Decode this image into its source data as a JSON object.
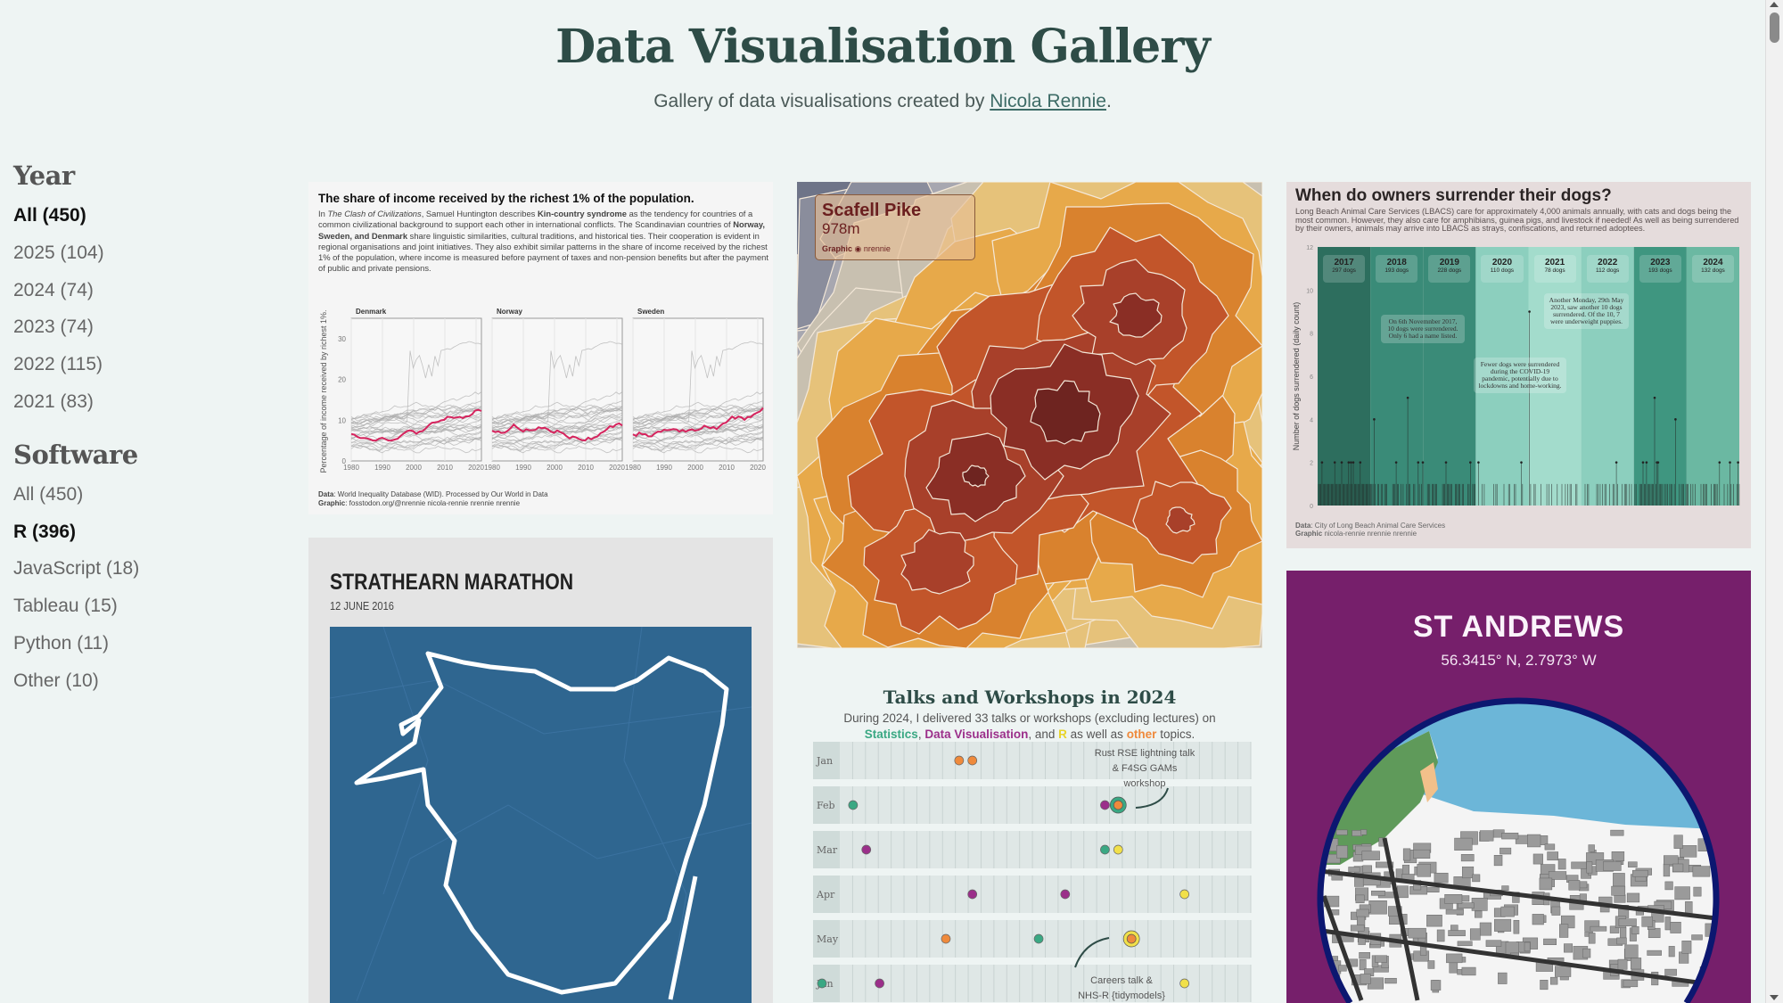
{
  "header": {
    "title": "Data Visualisation Gallery",
    "subtitle_prefix": "Gallery of data visualisations created by ",
    "author_link": "Nicola Rennie",
    "subtitle_suffix": "."
  },
  "sidebar": {
    "year_heading": "Year",
    "years": [
      {
        "label": "All (450)",
        "active": true
      },
      {
        "label": "2025 (104)"
      },
      {
        "label": "2024 (74)"
      },
      {
        "label": "2023 (74)"
      },
      {
        "label": "2022 (115)"
      },
      {
        "label": "2021 (83)"
      }
    ],
    "software_heading": "Software",
    "software": [
      {
        "label": "All (450)"
      },
      {
        "label": "R (396)",
        "active": true
      },
      {
        "label": "JavaScript (18)"
      },
      {
        "label": "Tableau (15)"
      },
      {
        "label": "Python (11)"
      },
      {
        "label": "Other (10)"
      }
    ]
  },
  "cards": {
    "income": {
      "title": "The share of income received by the richest 1% of the population.",
      "body_html_parts": {
        "p1": "In ",
        "italic": "The Clash of Civilizations",
        "p2": ", Samuel Huntington describes ",
        "bold1": "Kin-country syndrome",
        "p3": " as the tendency for countries of a common civilizational background to support each other in international conflicts. The Scandinavian countries of ",
        "bold2": "Norway, Sweden, and Denmark",
        "p4": " share linguistic similarities, cultural traditions, and historical ties. Their cooperation is evident in regional organisations and joint initiatives. They also exhibit similar patterns in the share of income received by the richest 1% of the population, where income is measured before payment of taxes and non-pension benefits but after the payment of public and private pensions."
      },
      "facets": [
        "Denmark",
        "Norway",
        "Sweden"
      ],
      "ylabel": "Percentage of income received by richest 1%.",
      "yticks": [
        "0",
        "10",
        "20",
        "30"
      ],
      "xticks": [
        "1980",
        "1990",
        "2000",
        "2010",
        "2020"
      ],
      "data_label": "Data",
      "data_text": ": World Inequality Database (WID). Processed by Our World in Data",
      "graphic_label": "Graphic",
      "graphic_text": ": fosstodon.org/@nrennie  nicola-rennie  nrennie  nrennie",
      "highlight_color": "#d6245e"
    },
    "scafell": {
      "title": "Scafell Pike",
      "height": "978m",
      "graphic": "Graphic",
      "handle": "nrennie"
    },
    "dogs": {
      "title": "When do owners surrender their dogs?",
      "body": "Long Beach Animal Care Services (LBACS) care for approximately 4,000 animals annually, with cats and dogs being the most common. However, they also care for amphibians, guinea pigs, and livestock if needed! As well as being surrendered by their owners, animals may arrive into LBACS as strays, confiscations, and returned adoptees.",
      "ylabel": "Number of dogs surrendered (daily count)",
      "yticks": [
        "0",
        "2",
        "4",
        "6",
        "8",
        "10",
        "12"
      ],
      "years": [
        {
          "year": "2017",
          "count": "297 dogs"
        },
        {
          "year": "2018",
          "count": "193 dogs"
        },
        {
          "year": "2019",
          "count": "228 dogs"
        },
        {
          "year": "2020",
          "count": "110 dogs"
        },
        {
          "year": "2021",
          "count": "78 dogs"
        },
        {
          "year": "2022",
          "count": "112 dogs"
        },
        {
          "year": "2023",
          "count": "193 dogs"
        },
        {
          "year": "2024",
          "count": "132 dogs"
        }
      ],
      "annotations": [
        "On 6th Novemnber 2017, 10 dogs were surrendered. Only 6 had a name listed.",
        "Another Monday, 29th May 2023, saw another 10 dogs surrendered. Of the 10, 7 were underweight puppies.",
        "Fewer dogs were surrendered during the COVID-19 pandemic, potentially due to lockdowns and home-working."
      ],
      "data_label": "Data",
      "data_text": ": City of Long Beach Animal Care Services",
      "graphic_label": "Graphic",
      "graphic_text": " nicola-rennie  nrennie  nrennie"
    },
    "strathearn": {
      "title": "STRATHEARN MARATHON",
      "date": "12 JUNE 2016"
    },
    "talks": {
      "title": "Talks and Workshops in 2024",
      "intro": "During 2024, I delivered 33 talks or workshops (excluding lectures) on",
      "cat_statistics": "Statistics",
      "cat_dataviz": "Data Visualisation",
      "and": ", and ",
      "cat_r": "R",
      "as_well": " as well as ",
      "cat_other": "other",
      "topics": " topics.",
      "comma": ", ",
      "colors": {
        "statistics": "#3aa883",
        "dataviz": "#9b2f8a",
        "r": "#f1e04a",
        "other": "#ef8a3c"
      },
      "months": [
        "Jan",
        "Feb",
        "Mar",
        "Apr",
        "May",
        "Jun"
      ],
      "events": [
        [
          [
            10,
            "other"
          ],
          [
            11,
            "other"
          ]
        ],
        [
          [
            2,
            "statistics"
          ],
          [
            21,
            "dataviz"
          ],
          [
            22,
            "statistics",
            "other"
          ]
        ],
        [
          [
            3,
            "dataviz"
          ],
          [
            21,
            "statistics"
          ],
          [
            22,
            "r"
          ]
        ],
        [
          [
            11,
            "dataviz"
          ],
          [
            18,
            "dataviz"
          ],
          [
            27,
            "r"
          ]
        ],
        [
          [
            9,
            "other"
          ],
          [
            16,
            "statistics"
          ],
          [
            23,
            "r",
            "other"
          ]
        ],
        [
          [
            1,
            "statistics"
          ],
          [
            4,
            "dataviz"
          ],
          [
            27,
            "r"
          ]
        ]
      ],
      "note1": [
        "Rust RSE lightning talk",
        "& F4SG GAMs",
        "workshop"
      ],
      "note2": [
        "Careers talk &",
        "NHS-R {tidymodels}"
      ]
    },
    "standrews": {
      "title": "ST ANDREWS",
      "coords": "56.3415° N, 2.7973° W"
    }
  }
}
